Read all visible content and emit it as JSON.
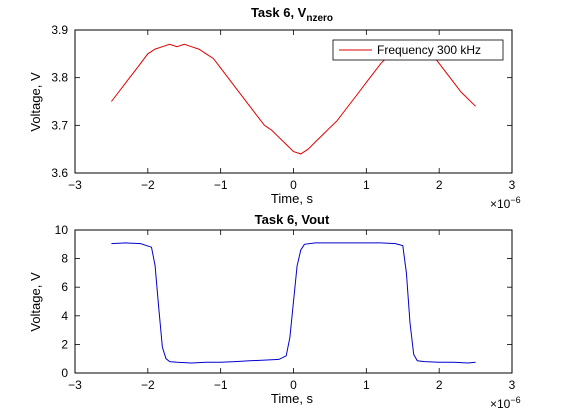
{
  "chart_data": [
    {
      "type": "line",
      "title": "Task 6, V",
      "title_subscript": "nzero",
      "xlabel": "Time, s",
      "ylabel": "Voltage, V",
      "x_multiplier": "×10",
      "x_multiplier_exp": "−6",
      "xlim": [
        -3,
        3
      ],
      "ylim": [
        3.6,
        3.9
      ],
      "xticks": [
        "−3",
        "−2",
        "−1",
        "0",
        "1",
        "2",
        "3"
      ],
      "xtick_values": [
        -3,
        -2,
        -1,
        0,
        1,
        2,
        3
      ],
      "yticks": [
        "3.6",
        "3.7",
        "3.8",
        "3.9"
      ],
      "ytick_values": [
        3.6,
        3.7,
        3.8,
        3.9
      ],
      "legend_position": "top-right",
      "series": [
        {
          "name": "Frequency 300 kHz",
          "color": "#e00000",
          "x": [
            -2.5,
            -2.4,
            -2.3,
            -2.2,
            -2.1,
            -2.0,
            -1.9,
            -1.8,
            -1.7,
            -1.6,
            -1.5,
            -1.4,
            -1.3,
            -1.2,
            -1.1,
            -1.0,
            -0.9,
            -0.8,
            -0.7,
            -0.6,
            -0.5,
            -0.4,
            -0.3,
            -0.2,
            -0.1,
            0.0,
            0.1,
            0.2,
            0.3,
            0.4,
            0.5,
            0.6,
            0.7,
            0.8,
            0.9,
            1.0,
            1.1,
            1.2,
            1.3,
            1.4,
            1.5,
            1.6,
            1.7,
            1.8,
            1.9,
            2.0,
            2.1,
            2.2,
            2.3,
            2.4,
            2.5
          ],
          "y": [
            3.75,
            3.77,
            3.79,
            3.81,
            3.83,
            3.85,
            3.86,
            3.865,
            3.87,
            3.865,
            3.87,
            3.865,
            3.86,
            3.85,
            3.84,
            3.82,
            3.8,
            3.78,
            3.76,
            3.74,
            3.72,
            3.7,
            3.69,
            3.675,
            3.66,
            3.645,
            3.64,
            3.65,
            3.665,
            3.68,
            3.695,
            3.71,
            3.73,
            3.75,
            3.77,
            3.79,
            3.81,
            3.83,
            3.845,
            3.855,
            3.865,
            3.87,
            3.865,
            3.86,
            3.85,
            3.83,
            3.81,
            3.79,
            3.77,
            3.755,
            3.74
          ]
        }
      ]
    },
    {
      "type": "line",
      "title": "Task 6, Vout",
      "xlabel": "Time, s",
      "ylabel": "Voltage, V",
      "x_multiplier": "×10",
      "x_multiplier_exp": "−6",
      "xlim": [
        -3,
        3
      ],
      "ylim": [
        0,
        10
      ],
      "xticks": [
        "−3",
        "−2",
        "−1",
        "0",
        "1",
        "2",
        "3"
      ],
      "xtick_values": [
        -3,
        -2,
        -1,
        0,
        1,
        2,
        3
      ],
      "yticks": [
        "0",
        "2",
        "4",
        "6",
        "8",
        "10"
      ],
      "ytick_values": [
        0,
        2,
        4,
        6,
        8,
        10
      ],
      "series": [
        {
          "color": "#0000d0",
          "x": [
            -2.5,
            -2.3,
            -2.1,
            -1.95,
            -1.9,
            -1.85,
            -1.8,
            -1.75,
            -1.7,
            -1.6,
            -1.4,
            -1.2,
            -1.0,
            -0.8,
            -0.6,
            -0.4,
            -0.2,
            -0.1,
            -0.05,
            0.0,
            0.05,
            0.1,
            0.15,
            0.3,
            0.6,
            0.9,
            1.2,
            1.4,
            1.5,
            1.55,
            1.6,
            1.65,
            1.7,
            1.8,
            2.0,
            2.2,
            2.4,
            2.5
          ],
          "y": [
            9.05,
            9.1,
            9.05,
            8.8,
            7.5,
            4.5,
            1.8,
            1.0,
            0.8,
            0.75,
            0.7,
            0.75,
            0.75,
            0.8,
            0.85,
            0.9,
            0.95,
            1.2,
            2.5,
            5.0,
            7.5,
            8.6,
            9.0,
            9.1,
            9.1,
            9.1,
            9.1,
            9.05,
            8.9,
            7.0,
            3.5,
            1.3,
            0.85,
            0.8,
            0.75,
            0.75,
            0.7,
            0.75
          ]
        }
      ]
    }
  ]
}
